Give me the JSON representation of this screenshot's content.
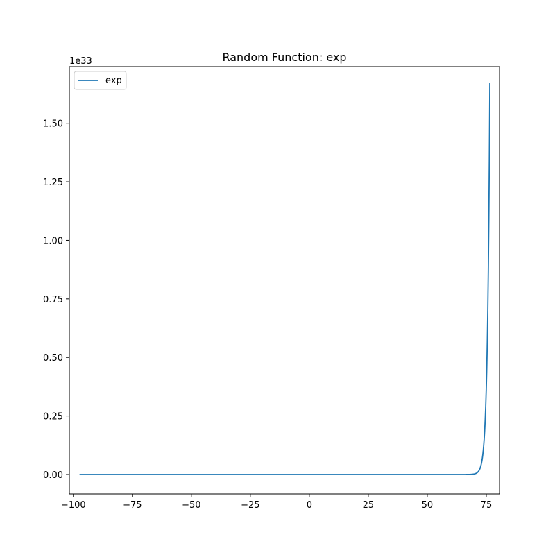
{
  "chart_data": {
    "type": "line",
    "title": "Random Function: exp",
    "xlabel": "",
    "ylabel": "",
    "y_offset_label": "1e33",
    "xlim": [
      -101.7,
      80.6
    ],
    "ylim": [
      -0.083,
      1.742
    ],
    "x_ticks": [
      -100,
      -75,
      -50,
      -25,
      0,
      25,
      50,
      75
    ],
    "x_tick_labels": [
      "−100",
      "−75",
      "−50",
      "−25",
      "0",
      "25",
      "50",
      "75"
    ],
    "y_ticks": [
      0,
      0.25,
      0.5,
      0.75,
      1.0,
      1.25,
      1.5
    ],
    "y_tick_labels": [
      "0.00",
      "0.25",
      "0.50",
      "0.75",
      "1.00",
      "1.25",
      "1.50"
    ],
    "x_range": [
      -97.4,
      76.5
    ],
    "y_scale": 1e+33,
    "grid": false,
    "legend_position": "top-left",
    "series": [
      {
        "name": "exp",
        "function": "exp",
        "color": "#1f77b4"
      }
    ]
  }
}
